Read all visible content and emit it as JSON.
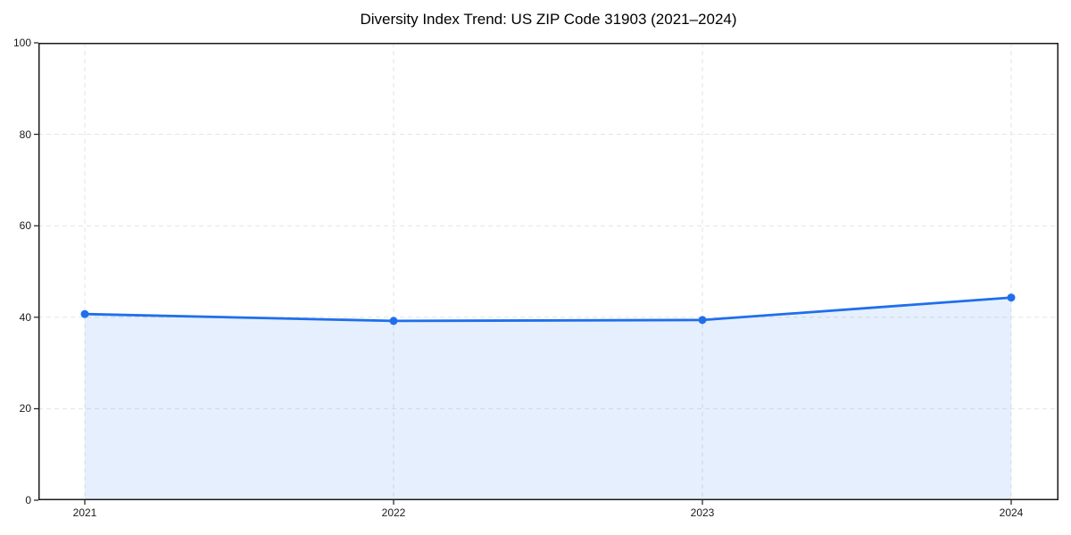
{
  "title": "Diversity Index Trend: US ZIP Code 31903 (2021–2024)",
  "colors": {
    "line": "#1f6feb",
    "fill": "rgba(31,111,235,0.11)",
    "grid": "#e3e3e3",
    "axis": "#1a1a1a",
    "text": "#1a1a1a",
    "background": "#ffffff"
  },
  "chart_data": {
    "type": "area",
    "title": "Diversity Index Trend: US ZIP Code 31903 (2021–2024)",
    "x": [
      2021,
      2022,
      2023,
      2024
    ],
    "series": [
      {
        "name": "Diversity Index",
        "values": [
          40.7,
          39.2,
          39.4,
          44.3
        ]
      }
    ],
    "xlabel": "",
    "ylabel": "",
    "ylim": [
      0,
      100
    ],
    "yticks": [
      0,
      20,
      40,
      60,
      80,
      100
    ],
    "xtick_labels": [
      "2021",
      "2022",
      "2023",
      "2024"
    ],
    "grid": true,
    "grid_style": "dashed",
    "legend": false,
    "marker": "circle",
    "fill_under_line": true
  }
}
